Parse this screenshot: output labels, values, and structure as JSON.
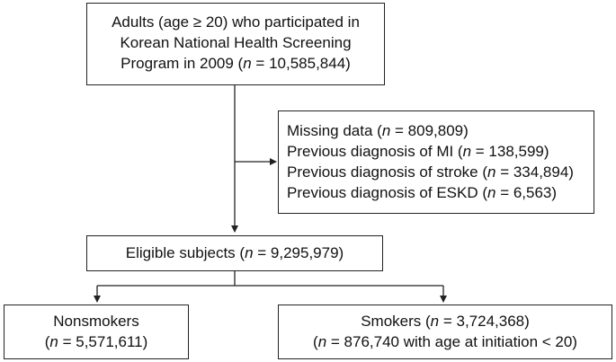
{
  "nodes": {
    "adults": {
      "line1": "Adults (age ≥ 20) who participated in",
      "line2": "Korean National Health Screening",
      "line3_pre": "Program in 2009 (",
      "n": "n",
      "line3_post": " = 10,585,844)"
    },
    "excluded": {
      "items": [
        {
          "pre": "Missing data (",
          "n": "n",
          "post": " = 809,809)"
        },
        {
          "pre": "Previous diagnosis of MI (",
          "n": "n",
          "post": " = 138,599)"
        },
        {
          "pre": "Previous diagnosis of stroke (",
          "n": "n",
          "post": " = 334,894)"
        },
        {
          "pre": "Previous diagnosis of ESKD (",
          "n": "n",
          "post": " = 6,563)"
        }
      ]
    },
    "eligible": {
      "pre": "Eligible subjects (",
      "n": "n",
      "post": " = 9,295,979)"
    },
    "nonsmokers": {
      "line1": "Nonsmokers",
      "line2_pre": "(",
      "n": "n",
      "line2_post": " = 5,571,611)"
    },
    "smokers": {
      "line1_pre": "Smokers (",
      "n1": "n",
      "line1_post": " = 3,724,368)",
      "line2_pre": "(",
      "n2": "n",
      "line2_post": " = 876,740 with age at initiation < 20)"
    }
  },
  "edges": [
    {
      "from": "adults",
      "to": "eligible"
    },
    {
      "from": "adults",
      "to": "excluded"
    },
    {
      "from": "eligible",
      "to": "nonsmokers"
    },
    {
      "from": "eligible",
      "to": "smokers"
    }
  ]
}
